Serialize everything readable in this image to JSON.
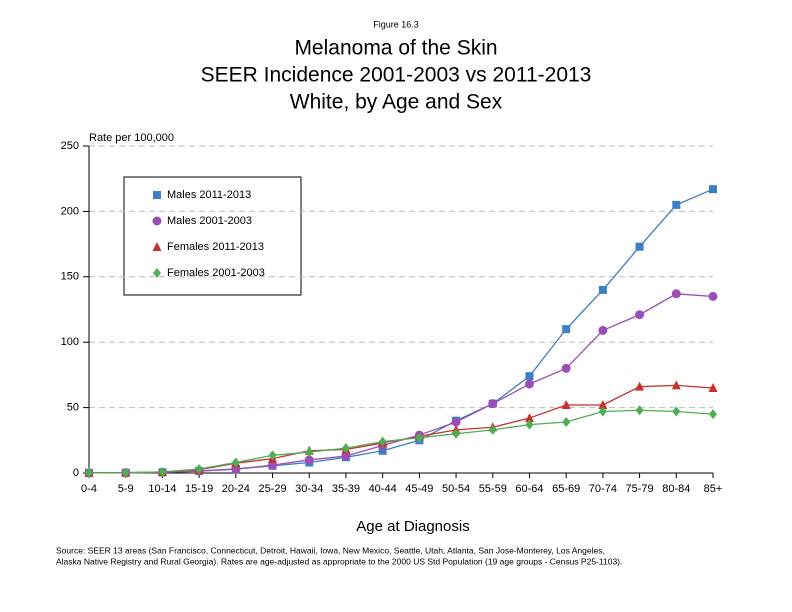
{
  "chart_data": {
    "type": "line",
    "figure": "Figure 16.3",
    "title": [
      "Melanoma of the Skin",
      "SEER Incidence 2001-2003 vs 2011-2013",
      "White, by Age and Sex"
    ],
    "y_label": "Rate per 100,000",
    "x_label": "Age at Diagnosis",
    "source": [
      "Source: SEER 13 areas (San Francisco, Connecticut, Detroit, Hawaii, Iowa, New Mexico, Seattle, Utah, Atlanta, San Jose-Monterey, Los Angeles,",
      "Alaska Native Registry and Rural Georgia). Rates are age-adjusted as appropriate to the 2000 US Std Population (19 age groups - Census P25-1103)."
    ],
    "categories": [
      "0-4",
      "5-9",
      "10-14",
      "15-19",
      "20-24",
      "25-29",
      "30-34",
      "35-39",
      "40-44",
      "45-49",
      "50-54",
      "55-59",
      "60-64",
      "65-69",
      "70-74",
      "75-79",
      "80-84",
      "85+"
    ],
    "series": [
      {
        "name": "Males 2011-2013",
        "color": "#3b7fc4",
        "marker": "square",
        "values": [
          0.1,
          0.2,
          0.5,
          1.5,
          3,
          5.5,
          8,
          12,
          17,
          25,
          40,
          53,
          74,
          110,
          140,
          173,
          205,
          217
        ]
      },
      {
        "name": "Males 2001-2003",
        "color": "#9b4fb6",
        "marker": "circle",
        "values": [
          0.1,
          0.2,
          0.5,
          1.5,
          3,
          6,
          10,
          13,
          21,
          29,
          39,
          53,
          68,
          80,
          109,
          121,
          137,
          135
        ]
      },
      {
        "name": "Females 2011-2013",
        "color": "#c8302c",
        "marker": "triangle",
        "values": [
          0.1,
          0.3,
          0.7,
          2.5,
          7.5,
          11,
          17,
          18,
          23,
          28,
          33,
          35,
          42,
          52,
          52,
          66,
          67,
          65
        ]
      },
      {
        "name": "Females 2001-2003",
        "color": "#4caf50",
        "marker": "diamond",
        "values": [
          0.1,
          0.3,
          0.8,
          3,
          8,
          13.5,
          16,
          19,
          24,
          27,
          30,
          33,
          37,
          39,
          47,
          48,
          47,
          45
        ]
      }
    ],
    "ylim": [
      0,
      250
    ],
    "yticks": [
      0,
      50,
      100,
      150,
      200,
      250
    ],
    "grid": true
  }
}
